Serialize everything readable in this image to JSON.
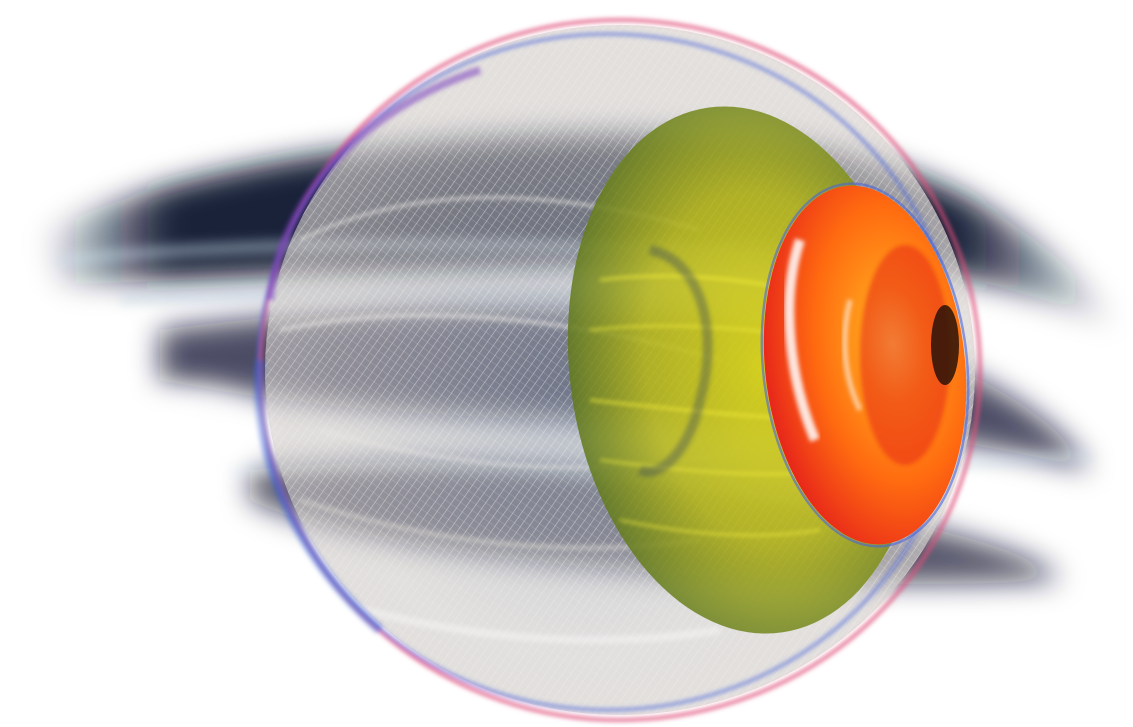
{
  "image": {
    "subject": "eyeball-render",
    "palette": {
      "background": "#ffffff",
      "streak_dark": "#0b1530",
      "streak_light": "#cfe3ee",
      "sclera": "#c9c6c3",
      "sclera_mesh": "#e9e6e2",
      "rim_pink": "#e0507a",
      "rim_blue": "#4a64d8",
      "lens_yellow": "#d8d21a",
      "lens_green": "#6f8a1c",
      "iris_orange": "#ff8a10",
      "iris_red": "#e8281a",
      "highlight": "#ffffff"
    }
  }
}
